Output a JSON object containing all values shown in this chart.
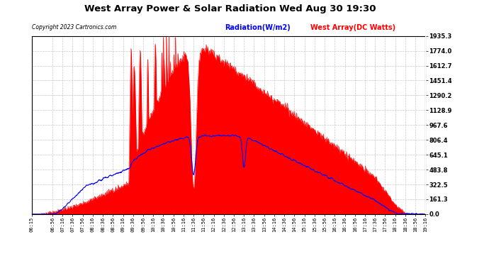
{
  "title": "West Array Power & Solar Radiation Wed Aug 30 19:30",
  "copyright": "Copyright 2023 Cartronics.com",
  "legend_radiation": "Radiation(W/m2)",
  "legend_west": "West Array(DC Watts)",
  "y_right_ticks": [
    0.0,
    161.3,
    322.5,
    483.8,
    645.1,
    806.4,
    967.6,
    1128.9,
    1290.2,
    1451.4,
    1612.7,
    1774.0,
    1935.3
  ],
  "y_max": 1935.3,
  "background_color": "#ffffff",
  "plot_bg_color": "#ffffff",
  "grid_color": "#bbbbbb",
  "red_color": "#ff0000",
  "blue_color": "#0000ff",
  "time_start": "06:15",
  "time_end": "19:16",
  "x_tick_labels": [
    "06:15",
    "06:56",
    "07:16",
    "07:36",
    "07:56",
    "08:16",
    "08:36",
    "08:56",
    "09:16",
    "09:36",
    "09:56",
    "10:16",
    "10:36",
    "10:56",
    "11:16",
    "11:36",
    "11:56",
    "12:16",
    "12:36",
    "12:56",
    "13:16",
    "13:36",
    "13:56",
    "14:16",
    "14:36",
    "14:56",
    "15:16",
    "15:36",
    "15:56",
    "16:16",
    "16:36",
    "16:56",
    "17:16",
    "17:36",
    "17:56",
    "18:16",
    "18:36",
    "18:56",
    "19:16"
  ]
}
